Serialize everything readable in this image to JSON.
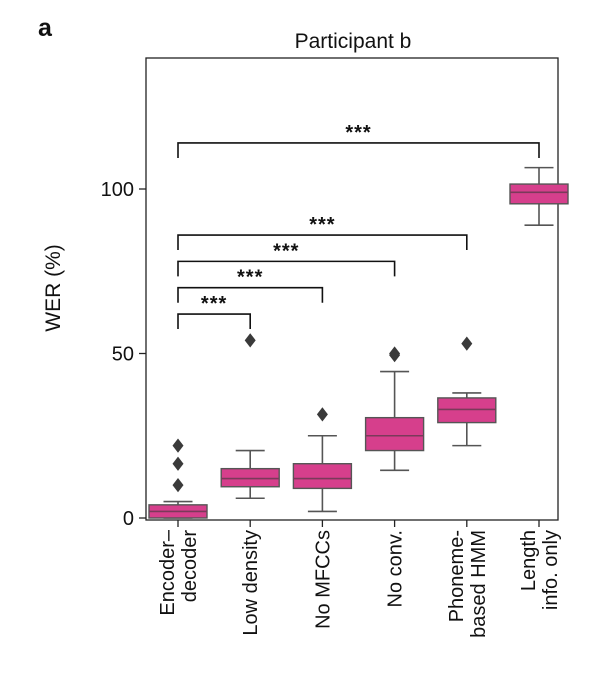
{
  "panel_letter": "a",
  "chart_data": {
    "type": "box",
    "title": "Participant b",
    "ylabel": "WER (%)",
    "xlabel": "",
    "ylim": [
      0,
      140
    ],
    "yticks": [
      0,
      50,
      100
    ],
    "grid": false,
    "box_color": "#d63f8c",
    "median_color": "#7a3a5a",
    "whisker_color": "#555555",
    "outlier_color": "#3a3a3a",
    "categories": [
      [
        "Encoder–",
        "decoder"
      ],
      [
        "Low density"
      ],
      [
        "No MFCCs"
      ],
      [
        "No conv."
      ],
      [
        "Phoneme-",
        "based HMM"
      ],
      [
        "Length",
        "info. only"
      ]
    ],
    "boxes": [
      {
        "whisker_low": 0,
        "q1": 0,
        "median": 2,
        "q3": 4,
        "whisker_high": 5,
        "outliers": [
          10,
          16.5,
          22
        ]
      },
      {
        "whisker_low": 6,
        "q1": 9.5,
        "median": 12,
        "q3": 15,
        "whisker_high": 20.5,
        "outliers": [
          54
        ]
      },
      {
        "whisker_low": 2,
        "q1": 9,
        "median": 12,
        "q3": 16.5,
        "whisker_high": 25,
        "outliers": [
          31.5
        ]
      },
      {
        "whisker_low": 14.5,
        "q1": 20.5,
        "median": 25,
        "q3": 30.5,
        "whisker_high": 44.5,
        "outliers": [
          49.5,
          50
        ]
      },
      {
        "whisker_low": 22,
        "q1": 29,
        "median": 33,
        "q3": 36.5,
        "whisker_high": 38,
        "outliers": [
          53
        ]
      },
      {
        "whisker_low": 89,
        "q1": 95.5,
        "median": 99,
        "q3": 101.5,
        "whisker_high": 106.5,
        "outliers": []
      }
    ],
    "significance": [
      {
        "from": 0,
        "to": 1,
        "y": 62,
        "label": "***"
      },
      {
        "from": 0,
        "to": 2,
        "y": 70,
        "label": "***"
      },
      {
        "from": 0,
        "to": 3,
        "y": 78,
        "label": "***"
      },
      {
        "from": 0,
        "to": 4,
        "y": 86,
        "label": "***"
      },
      {
        "from": 0,
        "to": 5,
        "y": 114,
        "label": "***"
      }
    ]
  }
}
